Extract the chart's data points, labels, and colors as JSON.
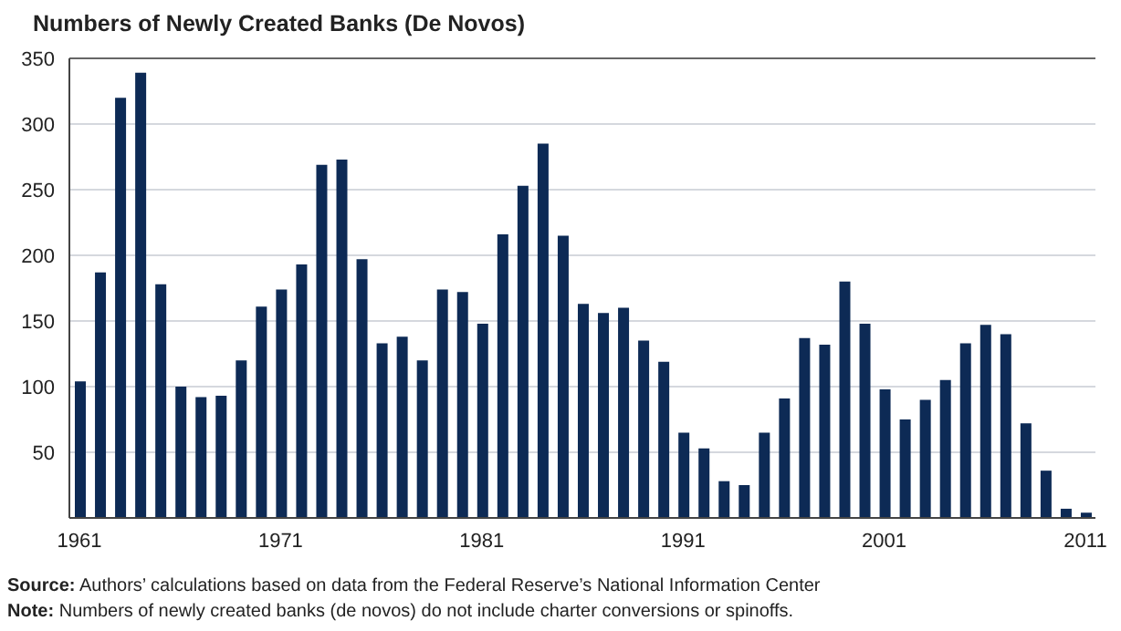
{
  "chart_data": {
    "type": "bar",
    "title": "Numbers of Newly Created Banks (De Novos)",
    "categories": [
      "1961",
      null,
      null,
      null,
      null,
      null,
      null,
      null,
      null,
      null,
      "1971",
      null,
      null,
      null,
      null,
      null,
      null,
      null,
      null,
      null,
      "1981",
      null,
      null,
      null,
      null,
      null,
      null,
      null,
      null,
      null,
      "1991",
      null,
      null,
      null,
      null,
      null,
      null,
      null,
      null,
      null,
      "2001",
      null,
      null,
      null,
      null,
      null,
      null,
      null,
      null,
      null,
      "2011"
    ],
    "values": [
      104,
      187,
      320,
      339,
      178,
      100,
      92,
      93,
      120,
      161,
      174,
      193,
      269,
      273,
      197,
      133,
      138,
      120,
      174,
      172,
      148,
      216,
      253,
      285,
      215,
      163,
      156,
      160,
      135,
      119,
      65,
      53,
      28,
      25,
      65,
      91,
      137,
      132,
      180,
      148,
      98,
      75,
      90,
      105,
      133,
      147,
      140,
      72,
      36,
      7,
      4
    ],
    "color": "#0d2a55",
    "ylim": [
      0,
      350
    ],
    "yticks": [
      50,
      100,
      150,
      200,
      250,
      300,
      350
    ],
    "grid": "y",
    "annotations": [
      "Source: Authors’ calculations based on data from the Federal Reserve’s National Information Center",
      "Note: Numbers of newly created banks (de novos) do not include charter conversions or spinoffs."
    ]
  }
}
